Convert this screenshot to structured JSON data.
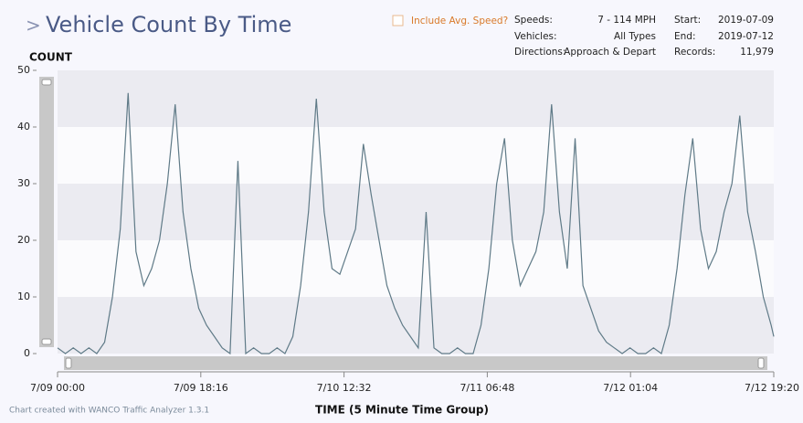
{
  "header": {
    "chevron": ">",
    "checkbox_label": "Include Avg. Speed?",
    "info": [
      [
        "Speeds:",
        "7 - 114 MPH",
        "Start:",
        "2019-07-09"
      ],
      [
        "Vehicles:",
        "All Types",
        "End:",
        "2019-07-12"
      ],
      [
        "Directions:",
        "Approach & Depart",
        "Records:",
        "11,979"
      ]
    ]
  },
  "footer": "Chart created with WANCO Traffic Analyzer 1.3.1",
  "chart_data": {
    "type": "line",
    "title": "Vehicle Count By Time",
    "y_label": "COUNT",
    "x_label": "TIME (5 Minute Time Group)",
    "ylim": [
      0,
      50
    ],
    "yticks": [
      0,
      10,
      20,
      30,
      40,
      50
    ],
    "bands": true,
    "xlim": [
      "7/09 00:00",
      "7/12 19:20"
    ],
    "xticks": [
      "7/09 00:00",
      "7/09 18:16",
      "7/10 12:32",
      "7/11 06:48",
      "7/12 01:04",
      "7/12 19:20"
    ],
    "x": [
      "7/09 00:00",
      "7/09 01:00",
      "7/09 02:00",
      "7/09 03:00",
      "7/09 04:00",
      "7/09 05:00",
      "7/09 06:00",
      "7/09 07:00",
      "7/09 08:00",
      "7/09 09:00",
      "7/09 10:00",
      "7/09 11:00",
      "7/09 12:00",
      "7/09 13:00",
      "7/09 14:00",
      "7/09 15:00",
      "7/09 16:00",
      "7/09 17:00",
      "7/09 18:00",
      "7/09 19:00",
      "7/09 20:00",
      "7/09 21:00",
      "7/09 22:00",
      "7/09 23:00",
      "7/10 00:00",
      "7/10 01:00",
      "7/10 02:00",
      "7/10 03:00",
      "7/10 04:00",
      "7/10 05:00",
      "7/10 06:00",
      "7/10 07:00",
      "7/10 08:00",
      "7/10 09:00",
      "7/10 10:00",
      "7/10 11:00",
      "7/10 12:00",
      "7/10 13:00",
      "7/10 14:00",
      "7/10 15:00",
      "7/10 16:00",
      "7/10 17:00",
      "7/10 18:00",
      "7/10 19:00",
      "7/10 20:00",
      "7/10 21:00",
      "7/10 22:00",
      "7/10 23:00",
      "7/11 00:00",
      "7/11 01:00",
      "7/11 02:00",
      "7/11 03:00",
      "7/11 04:00",
      "7/11 05:00",
      "7/11 06:00",
      "7/11 07:00",
      "7/11 08:00",
      "7/11 09:00",
      "7/11 10:00",
      "7/11 11:00",
      "7/11 12:00",
      "7/11 13:00",
      "7/11 14:00",
      "7/11 15:00",
      "7/11 16:00",
      "7/11 17:00",
      "7/11 18:00",
      "7/11 19:00",
      "7/11 20:00",
      "7/11 21:00",
      "7/11 22:00",
      "7/11 23:00",
      "7/12 00:00",
      "7/12 01:00",
      "7/12 02:00",
      "7/12 03:00",
      "7/12 04:00",
      "7/12 05:00",
      "7/12 06:00",
      "7/12 07:00",
      "7/12 08:00",
      "7/12 09:00",
      "7/12 10:00",
      "7/12 11:00",
      "7/12 12:00",
      "7/12 13:00",
      "7/12 14:00",
      "7/12 15:00",
      "7/12 16:00",
      "7/12 17:00",
      "7/12 18:00",
      "7/12 19:00",
      "7/12 19:20"
    ],
    "series": [
      {
        "name": "Count",
        "color": "#5f7a87",
        "values": [
          1,
          0,
          1,
          0,
          1,
          0,
          2,
          10,
          22,
          46,
          18,
          12,
          15,
          20,
          30,
          44,
          25,
          15,
          8,
          5,
          3,
          1,
          0,
          34,
          0,
          1,
          0,
          0,
          1,
          0,
          3,
          12,
          25,
          45,
          25,
          15,
          14,
          18,
          22,
          37,
          28,
          20,
          12,
          8,
          5,
          3,
          1,
          25,
          1,
          0,
          0,
          1,
          0,
          0,
          5,
          15,
          30,
          38,
          20,
          12,
          15,
          18,
          25,
          44,
          25,
          15,
          38,
          12,
          8,
          4,
          2,
          1,
          0,
          1,
          0,
          0,
          1,
          0,
          5,
          15,
          28,
          38,
          22,
          15,
          18,
          25,
          30,
          42,
          25,
          18,
          10,
          5,
          3
        ]
      }
    ]
  }
}
